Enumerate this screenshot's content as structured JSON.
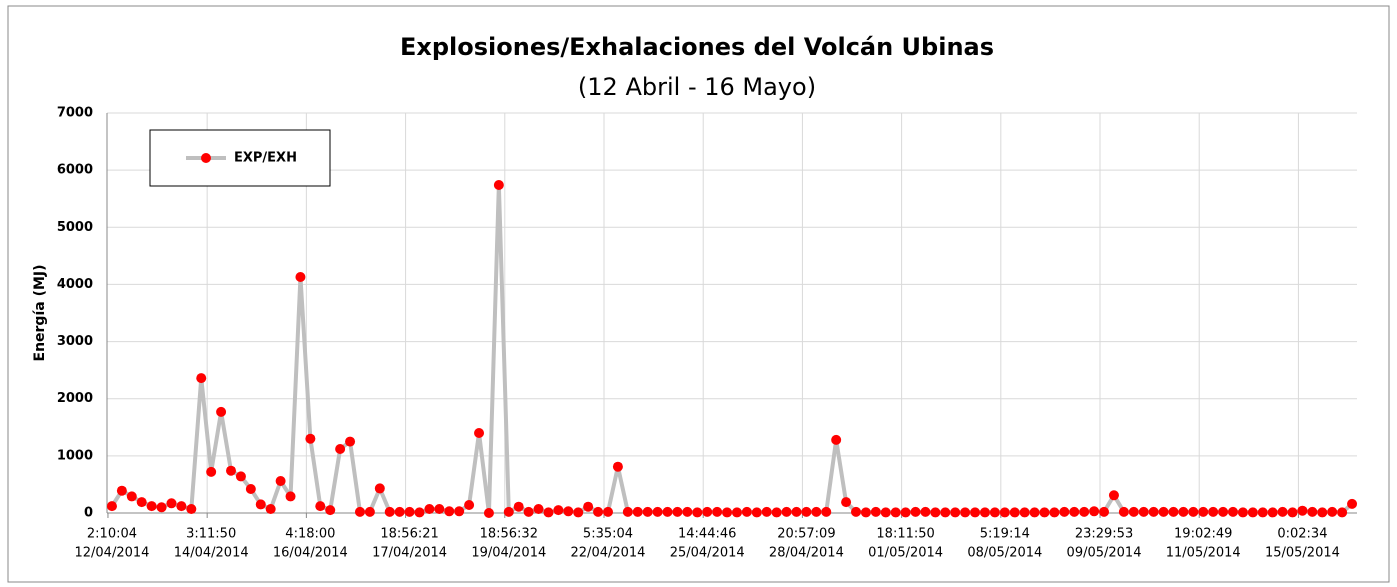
{
  "chart_data": {
    "type": "line",
    "title": "Explosiones/Exhalaciones  del Volcán Ubinas",
    "subtitle": "(12 Abril - 16 Mayo)",
    "y_label": "Energía (MJ)",
    "legend": "top-left",
    "grid": true,
    "ylim": [
      0,
      7000
    ],
    "yticks": [
      0,
      1000,
      2000,
      3000,
      4000,
      5000,
      6000,
      7000
    ],
    "categories": [
      [
        "2:10:04",
        "12/04/2014"
      ],
      null,
      null,
      null,
      null,
      null,
      null,
      null,
      null,
      null,
      [
        "3:11:50",
        "14/04/2014"
      ],
      null,
      null,
      null,
      null,
      null,
      null,
      null,
      null,
      null,
      [
        "4:18:00",
        "16/04/2014"
      ],
      null,
      null,
      null,
      null,
      null,
      null,
      null,
      null,
      null,
      [
        "18:56:21",
        "17/04/2014"
      ],
      null,
      null,
      null,
      null,
      null,
      null,
      null,
      null,
      null,
      [
        "18:56:32",
        "19/04/2014"
      ],
      null,
      null,
      null,
      null,
      null,
      null,
      null,
      null,
      null,
      [
        "5:35:04",
        "22/04/2014"
      ],
      null,
      null,
      null,
      null,
      null,
      null,
      null,
      null,
      null,
      [
        "14:44:46",
        "25/04/2014"
      ],
      null,
      null,
      null,
      null,
      null,
      null,
      null,
      null,
      null,
      [
        "20:57:09",
        "28/04/2014"
      ],
      null,
      null,
      null,
      null,
      null,
      null,
      null,
      null,
      null,
      [
        "18:11:50",
        "01/05/2014"
      ],
      null,
      null,
      null,
      null,
      null,
      null,
      null,
      null,
      null,
      [
        "5:19:14",
        "08/05/2014"
      ],
      null,
      null,
      null,
      null,
      null,
      null,
      null,
      null,
      null,
      [
        "23:29:53",
        "09/05/2014"
      ],
      null,
      null,
      null,
      null,
      null,
      null,
      null,
      null,
      null,
      [
        "19:02:49",
        "11/05/2014"
      ],
      null,
      null,
      null,
      null,
      null,
      null,
      null,
      null,
      null,
      [
        "0:02:34",
        "15/05/2014"
      ],
      null,
      null,
      null,
      null,
      null
    ],
    "series": [
      {
        "name": "EXP/EXH",
        "color": "#ff0000",
        "line_color": "#bfbfbf",
        "values": [
          120,
          390,
          290,
          190,
          120,
          100,
          170,
          120,
          70,
          2360,
          720,
          1770,
          740,
          640,
          420,
          150,
          70,
          560,
          290,
          4130,
          1300,
          120,
          50,
          1120,
          1250,
          20,
          20,
          430,
          20,
          20,
          20,
          10,
          70,
          70,
          30,
          30,
          140,
          1400,
          0,
          5740,
          20,
          110,
          20,
          70,
          10,
          50,
          30,
          10,
          110,
          20,
          20,
          810,
          20,
          20,
          20,
          20,
          20,
          20,
          20,
          10,
          20,
          20,
          10,
          10,
          20,
          10,
          20,
          10,
          20,
          20,
          20,
          20,
          20,
          1280,
          190,
          20,
          10,
          20,
          10,
          10,
          10,
          20,
          20,
          10,
          10,
          10,
          10,
          10,
          10,
          10,
          10,
          10,
          10,
          10,
          10,
          10,
          20,
          20,
          20,
          30,
          20,
          310,
          20,
          20,
          20,
          20,
          20,
          20,
          20,
          20,
          20,
          20,
          20,
          20,
          10,
          10,
          10,
          10,
          20,
          10,
          40,
          20,
          10,
          20,
          10,
          160
        ]
      }
    ]
  }
}
